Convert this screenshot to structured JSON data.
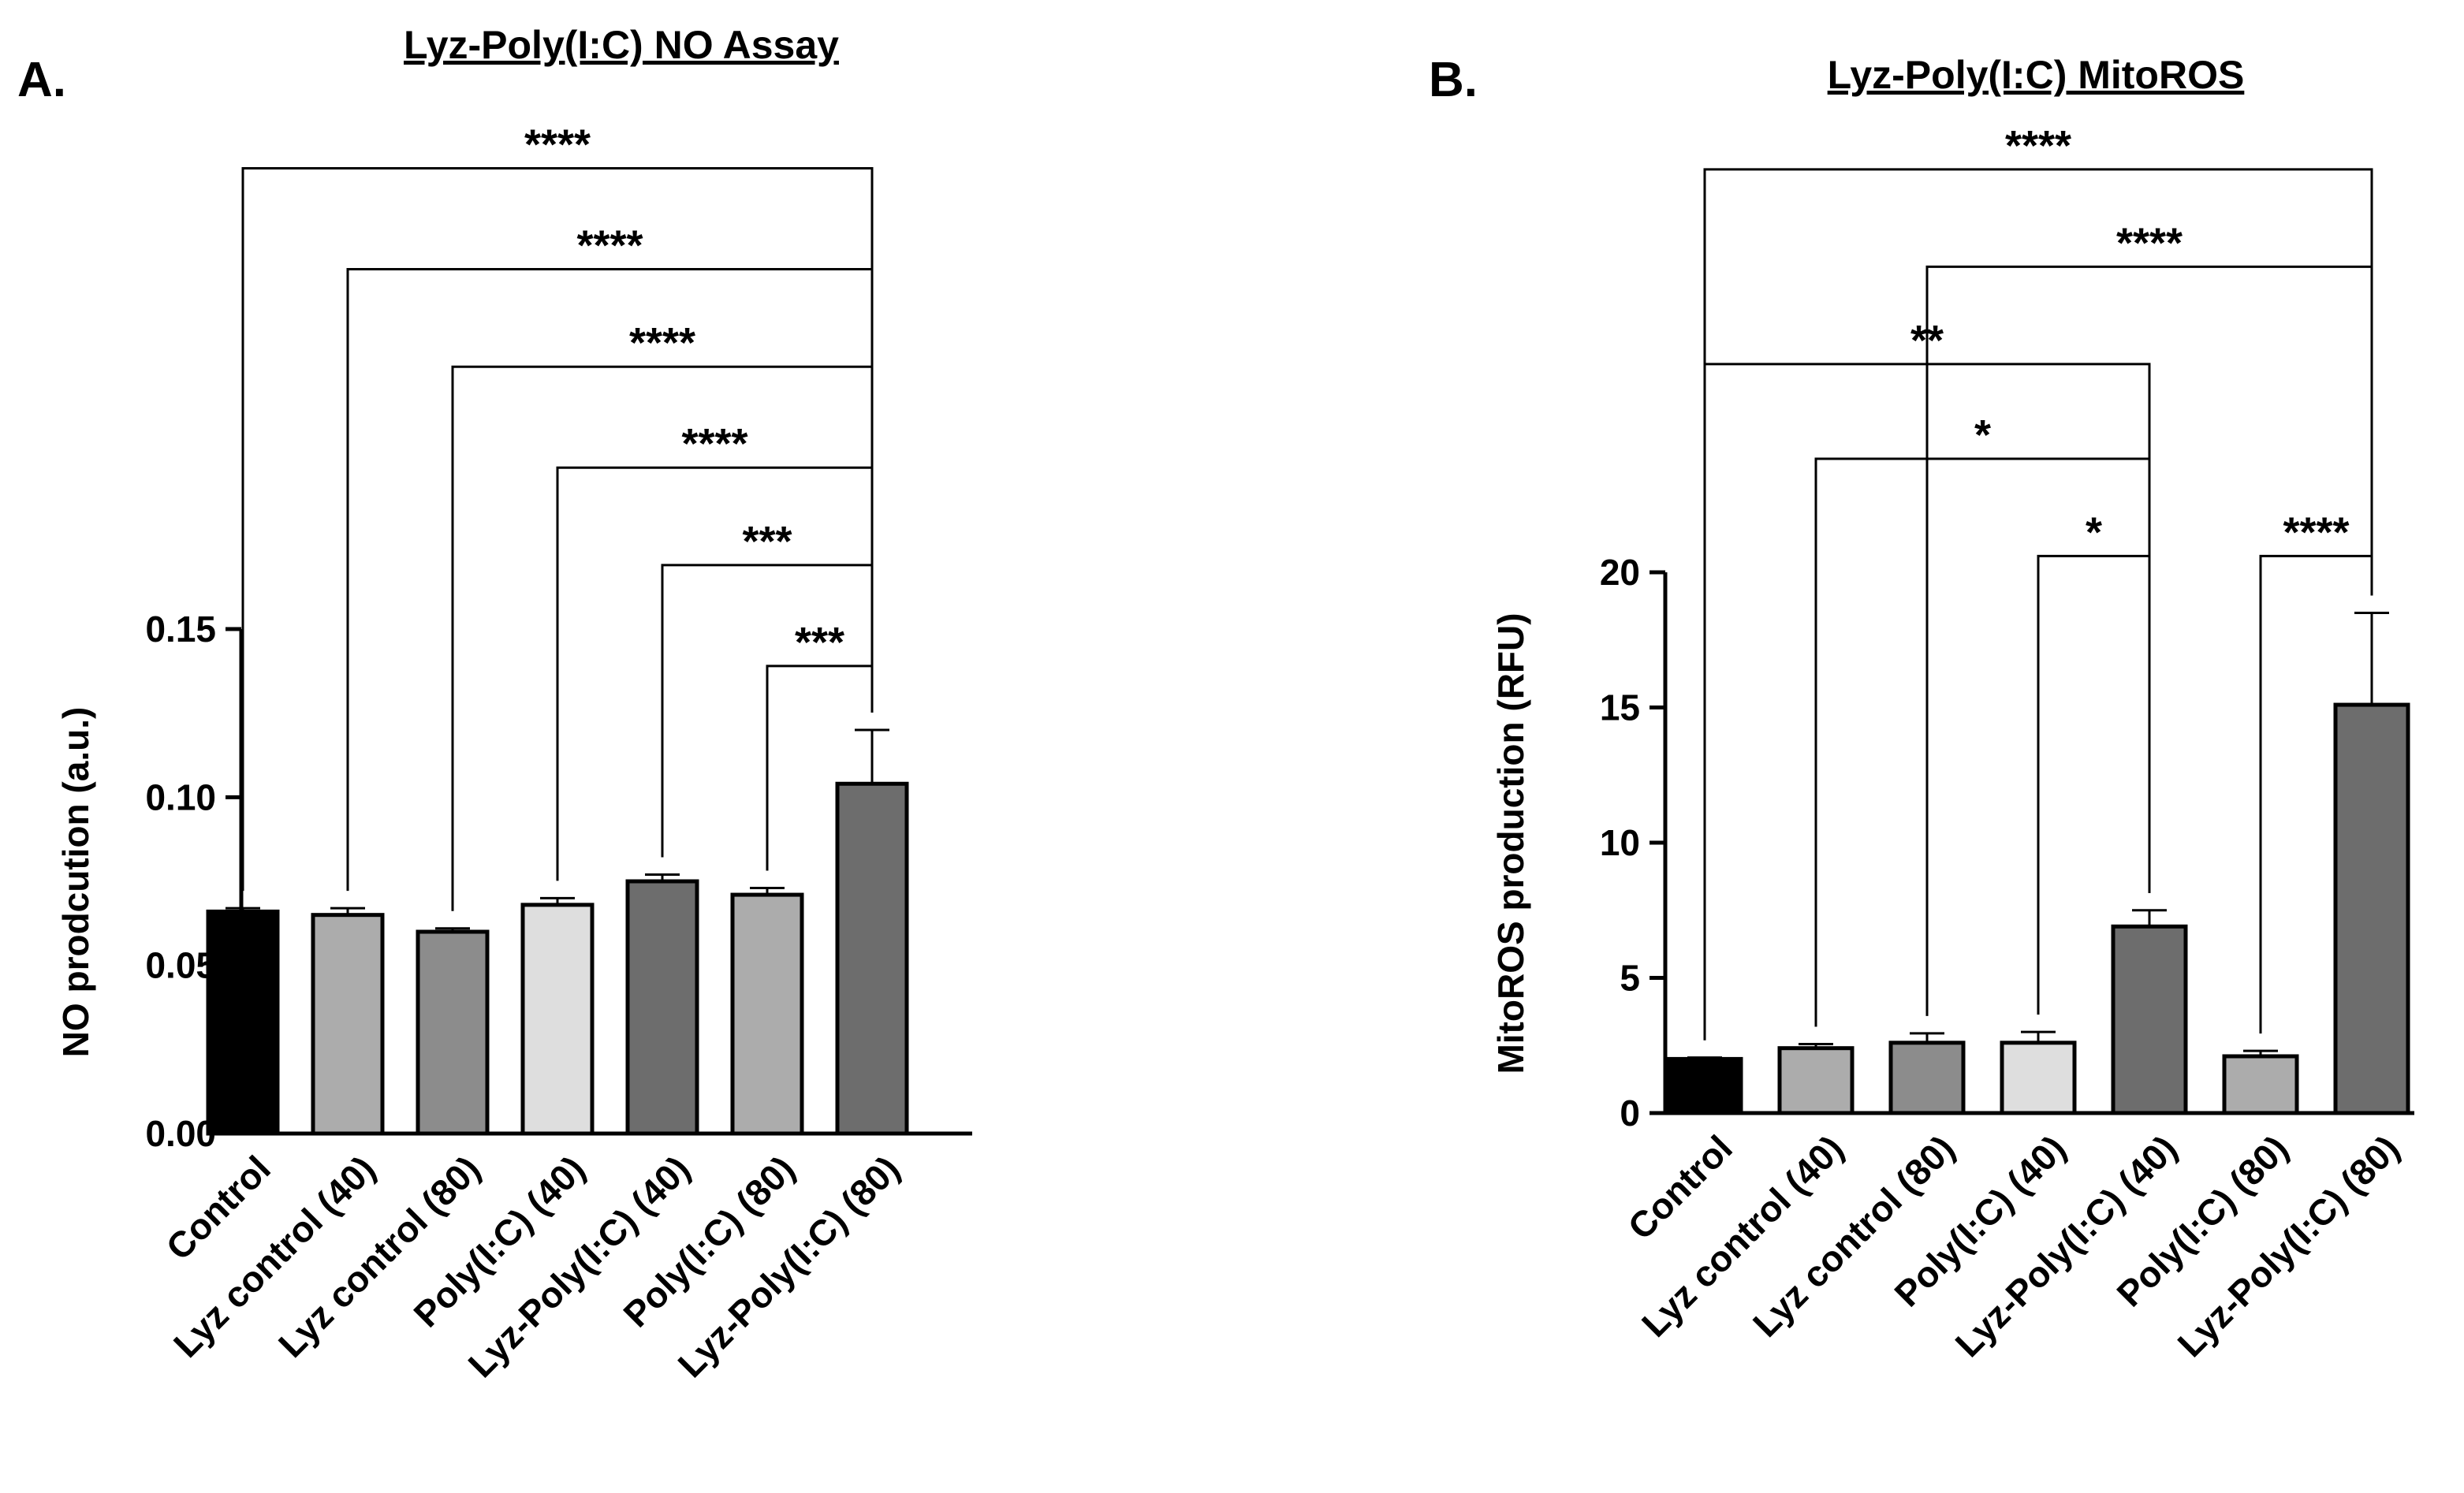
{
  "chart_data": [
    {
      "type": "bar",
      "panel_label": "A.",
      "title": "Lyz-Poly(I:C) NO Assay",
      "xlabel": "",
      "ylabel": "NO prodcution (a.u.)",
      "ylim": [
        0,
        0.15
      ],
      "yticks": [
        0.0,
        0.05,
        0.1,
        0.15
      ],
      "ytick_labels": [
        "0.00",
        "0.05",
        "0.10",
        "0.15"
      ],
      "categories": [
        "Control",
        "Lyz control (40)",
        "Lyz control (80)",
        "Poly(I:C) (40)",
        "Lyz-Poly(I:C) (40)",
        "Poly(I:C) (80)",
        "Lyz-Poly(I:C) (80)"
      ],
      "values": [
        0.066,
        0.065,
        0.06,
        0.068,
        0.075,
        0.071,
        0.104
      ],
      "errors": [
        0.001,
        0.002,
        0.001,
        0.002,
        0.002,
        0.002,
        0.016
      ],
      "colors": [
        "#000000",
        "#acacac",
        "#8c8c8c",
        "#dedede",
        "#6d6d6d",
        "#acacac",
        "#6d6d6d"
      ],
      "significance": [
        {
          "from": 0,
          "to": 6,
          "label": "****",
          "level": 0.287
        },
        {
          "from": 1,
          "to": 6,
          "label": "****",
          "level": 0.257
        },
        {
          "from": 2,
          "to": 6,
          "label": "****",
          "level": 0.228
        },
        {
          "from": 3,
          "to": 6,
          "label": "****",
          "level": 0.198
        },
        {
          "from": 4,
          "to": 6,
          "label": "***",
          "level": 0.169
        },
        {
          "from": 5,
          "to": 6,
          "label": "***",
          "level": 0.139
        }
      ]
    },
    {
      "type": "bar",
      "panel_label": "B.",
      "title": "Lyz-Poly(I:C) MitoROS",
      "xlabel": "",
      "ylabel": "MitoROS production (RFU)",
      "ylim": [
        0,
        20
      ],
      "yticks": [
        0,
        5,
        10,
        15,
        20
      ],
      "ytick_labels": [
        "0",
        "5",
        "10",
        "15",
        "20"
      ],
      "categories": [
        "Control",
        "Lyz control (40)",
        "Lyz control (80)",
        "Poly(I:C) (40)",
        "Lyz-Poly(I:C) (40)",
        "Poly(I:C) (80)",
        "Lyz-Poly(I:C) (80)"
      ],
      "values": [
        2.0,
        2.4,
        2.6,
        2.6,
        6.9,
        2.1,
        15.1
      ],
      "errors": [
        0.05,
        0.15,
        0.35,
        0.4,
        0.6,
        0.2,
        3.4
      ],
      "colors": [
        "#000000",
        "#acacac",
        "#8c8c8c",
        "#dedede",
        "#6d6d6d",
        "#acacac",
        "#6d6d6d"
      ],
      "significance": [
        {
          "from": 0,
          "to": 6,
          "label": "****",
          "level": 34.9
        },
        {
          "from": 2,
          "to": 6,
          "label": "****",
          "level": 31.3
        },
        {
          "from": 0,
          "to": 4,
          "label": "**",
          "level": 27.7
        },
        {
          "from": 1,
          "to": 4,
          "label": "*",
          "level": 24.2
        },
        {
          "from": 3,
          "to": 4,
          "label": "*",
          "level": 20.6
        },
        {
          "from": 5,
          "to": 6,
          "label": "****",
          "level": 20.6
        }
      ]
    }
  ]
}
